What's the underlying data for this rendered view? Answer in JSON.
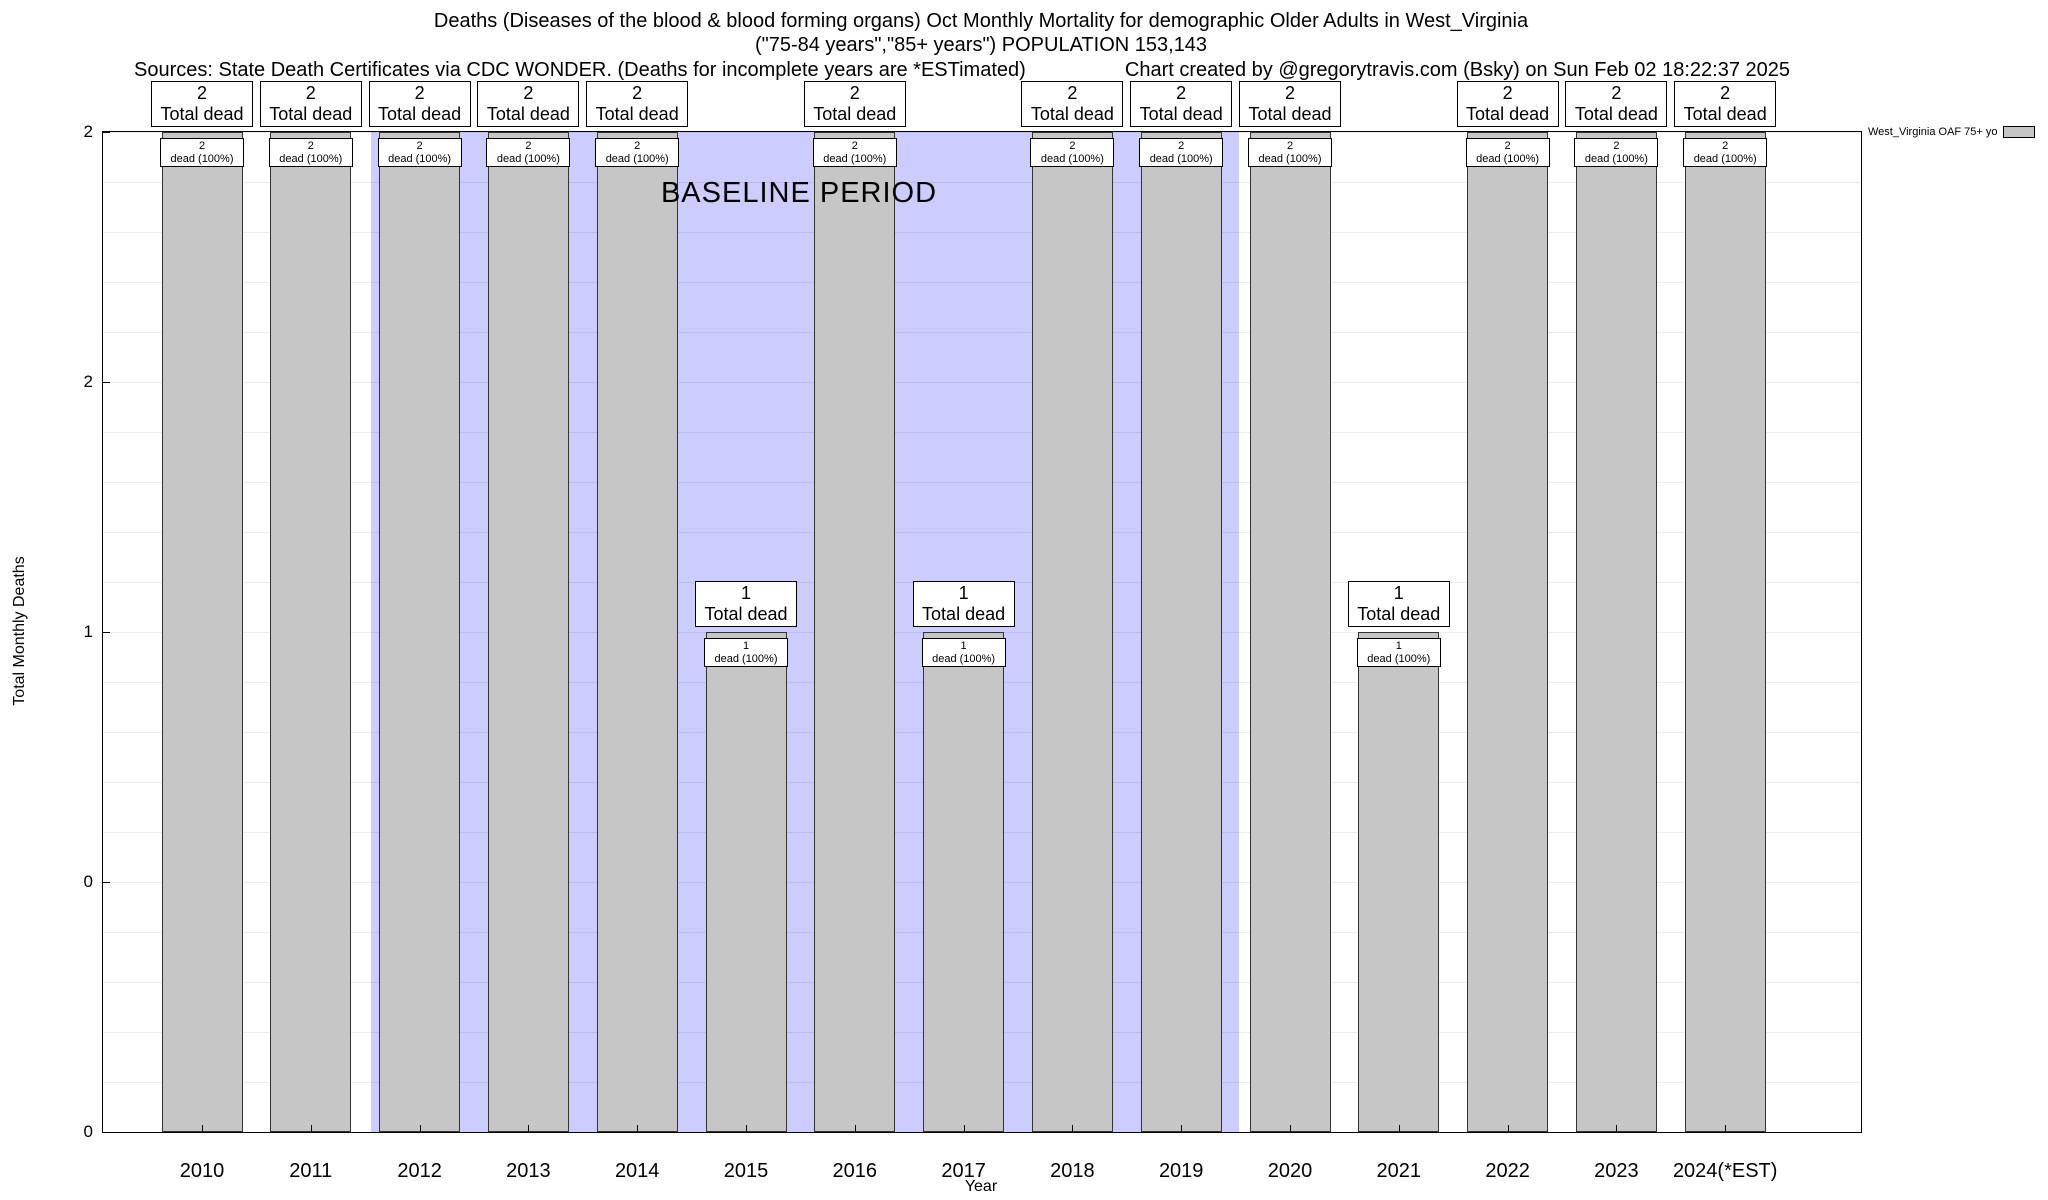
{
  "header": {
    "title_line1": "Deaths (Diseases of the blood & blood forming organs) Oct Monthly Mortality for demographic Older Adults in West_Virginia",
    "title_line2": "(\"75-84 years\",\"85+ years\") POPULATION 153,143",
    "sources_note": "Sources: State Death Certificates via CDC WONDER. (Deaths for incomplete years are *ESTimated)",
    "credit_note": "Chart created by @gregorytravis.com (Bsky) on Sun Feb 02 18:22:37 2025"
  },
  "chart_data": {
    "type": "bar",
    "title": "Deaths (Diseases of the blood & blood forming organs) Oct Monthly Mortality for demographic Older Adults in West_Virginia (\"75-84 years\",\"85+ years\") POPULATION 153,143",
    "xlabel": "Year",
    "ylabel": "Total Monthly Deaths",
    "ylim": [
      0,
      2
    ],
    "grid_step": 0.1,
    "grid": "on",
    "yticks": [
      {
        "value": 0,
        "label": "0"
      },
      {
        "value": 0.5,
        "label": "0"
      },
      {
        "value": 1,
        "label": "1"
      },
      {
        "value": 1.5,
        "label": "2"
      },
      {
        "value": 2,
        "label": "2"
      }
    ],
    "categories": [
      "2010",
      "2011",
      "2012",
      "2013",
      "2014",
      "2015",
      "2016",
      "2017",
      "2018",
      "2019",
      "2020",
      "2021",
      "2022",
      "2023",
      "2024(*EST)"
    ],
    "series": [
      {
        "name": "West_Virginia OAF 75+ yo",
        "values": [
          2,
          2,
          2,
          2,
          2,
          1,
          2,
          1,
          2,
          2,
          2,
          1,
          2,
          2,
          2
        ]
      }
    ],
    "bar_labels": {
      "total_label": "Total dead",
      "pct_label": "dead (100%)"
    },
    "baseline_region": {
      "label": "BASELINE PERIOD",
      "start_year": 2011.55,
      "end_year": 2019.53,
      "color": "#ccccff"
    },
    "colors": {
      "bar_fill": "#c6c6c6",
      "bar_border": "#333333",
      "axis": "#000000",
      "baseline": "#ccccff"
    },
    "legend": {
      "position": "top-right",
      "label": "West_Virginia OAF 75+ yo",
      "swatch_color": "#c6c6c6"
    }
  }
}
